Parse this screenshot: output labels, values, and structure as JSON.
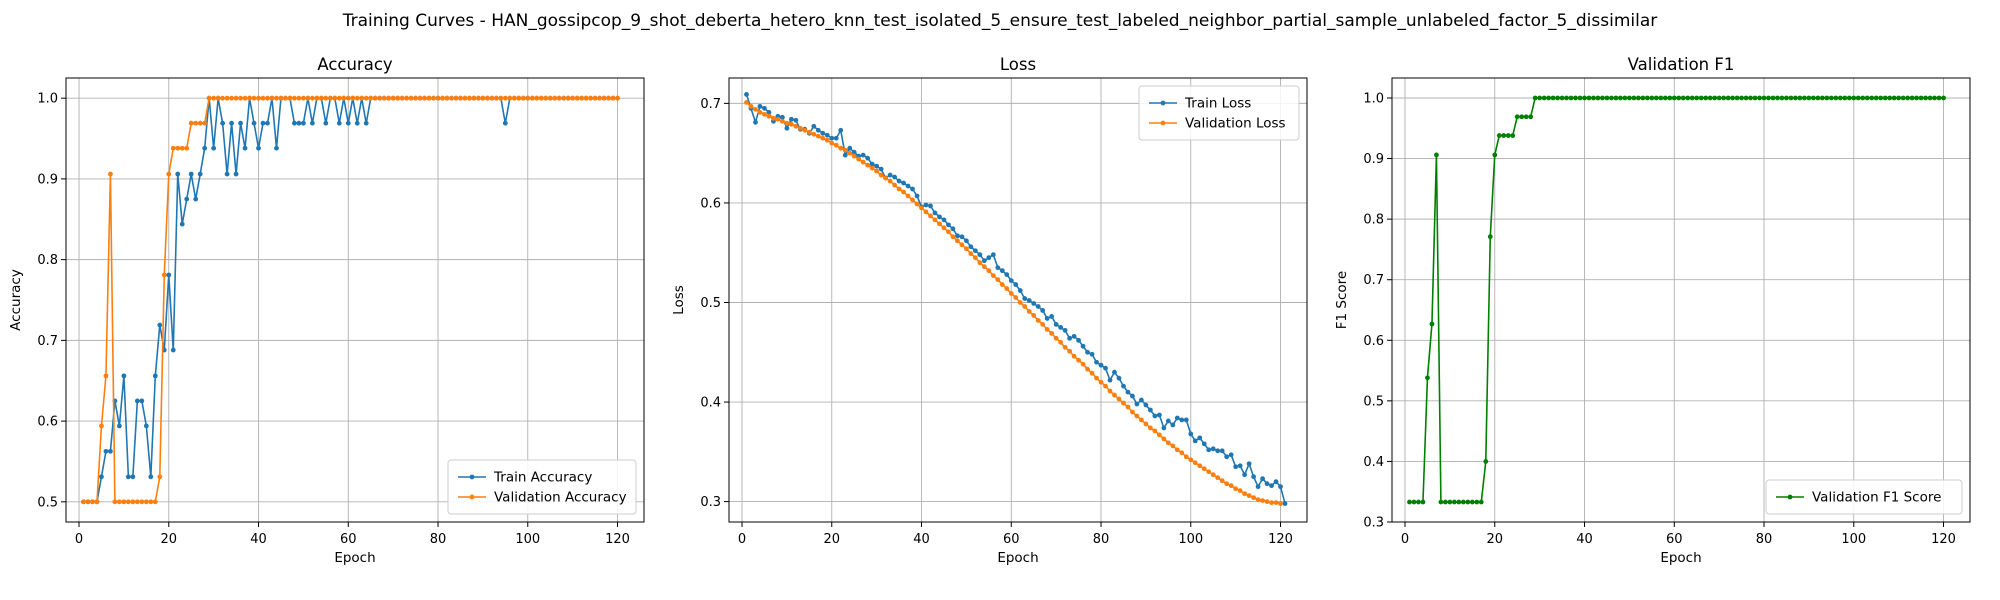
{
  "figure": {
    "title": "Training Curves - HAN_gossipcop_9_shot_deberta_hetero_knn_test_isolated_5_ensure_test_labeled_neighbor_partial_sample_unlabeled_factor_5_dissimilar"
  },
  "colors": {
    "train": "#1f77b4",
    "validation": "#ff7f0e",
    "f1": "#008000",
    "grid": "#b0b0b0"
  },
  "chart_data": [
    {
      "type": "line",
      "title": "Accuracy",
      "xlabel": "Epoch",
      "ylabel": "Accuracy",
      "xlim": [
        -2.9,
        125.9
      ],
      "ylim": [
        0.475,
        1.025
      ],
      "xticks": [
        0,
        20,
        40,
        60,
        80,
        100,
        120
      ],
      "yticks": [
        0.5,
        0.6,
        0.7,
        0.8,
        0.9,
        1.0
      ],
      "ytick_labels": [
        "0.5",
        "0.6",
        "0.7",
        "0.8",
        "0.9",
        "1.0"
      ],
      "grid": true,
      "legend": "lower-right",
      "series": [
        {
          "name": "Train Accuracy",
          "color": "#1f77b4",
          "x_start": 1,
          "values": [
            0.5,
            0.5,
            0.5,
            0.5,
            0.531,
            0.5625,
            0.5625,
            0.625,
            0.594,
            0.656,
            0.531,
            0.531,
            0.625,
            0.625,
            0.594,
            0.531,
            0.656,
            0.719,
            0.688,
            0.781,
            0.688,
            0.906,
            0.844,
            0.875,
            0.906,
            0.875,
            0.906,
            0.938,
            1.0,
            0.938,
            1.0,
            0.969,
            0.906,
            0.969,
            0.906,
            0.969,
            0.938,
            1.0,
            0.969,
            0.938,
            0.969,
            0.969,
            1.0,
            0.938,
            1.0,
            1.0,
            1.0,
            0.969,
            0.969,
            0.969,
            1.0,
            0.969,
            1.0,
            1.0,
            0.969,
            1.0,
            1.0,
            0.969,
            1.0,
            0.969,
            1.0,
            0.969,
            1.0,
            0.969,
            1.0,
            1.0,
            1.0,
            1.0,
            1.0,
            1.0,
            1.0,
            1.0,
            1.0,
            1.0,
            1.0,
            1.0,
            1.0,
            1.0,
            1.0,
            1.0,
            1.0,
            1.0,
            1.0,
            1.0,
            1.0,
            1.0,
            1.0,
            1.0,
            1.0,
            1.0,
            1.0,
            1.0,
            1.0,
            1.0,
            0.969,
            1.0,
            1.0,
            1.0,
            1.0,
            1.0,
            1.0,
            1.0,
            1.0,
            1.0,
            1.0,
            1.0,
            1.0,
            1.0,
            1.0,
            1.0,
            1.0,
            1.0,
            1.0,
            1.0,
            1.0,
            1.0,
            1.0,
            1.0,
            1.0,
            1.0
          ]
        },
        {
          "name": "Validation Accuracy",
          "color": "#ff7f0e",
          "x_start": 1,
          "values": [
            0.5,
            0.5,
            0.5,
            0.5,
            0.594,
            0.656,
            0.906,
            0.5,
            0.5,
            0.5,
            0.5,
            0.5,
            0.5,
            0.5,
            0.5,
            0.5,
            0.5,
            0.531,
            0.781,
            0.906,
            0.938,
            0.938,
            0.938,
            0.938,
            0.969,
            0.969,
            0.969,
            0.969,
            1.0,
            1.0,
            1.0,
            1.0,
            1.0,
            1.0,
            1.0,
            1.0,
            1.0,
            1.0,
            1.0,
            1.0,
            1.0,
            1.0,
            1.0,
            1.0,
            1.0,
            1.0,
            1.0,
            1.0,
            1.0,
            1.0,
            1.0,
            1.0,
            1.0,
            1.0,
            1.0,
            1.0,
            1.0,
            1.0,
            1.0,
            1.0,
            1.0,
            1.0,
            1.0,
            1.0,
            1.0,
            1.0,
            1.0,
            1.0,
            1.0,
            1.0,
            1.0,
            1.0,
            1.0,
            1.0,
            1.0,
            1.0,
            1.0,
            1.0,
            1.0,
            1.0,
            1.0,
            1.0,
            1.0,
            1.0,
            1.0,
            1.0,
            1.0,
            1.0,
            1.0,
            1.0,
            1.0,
            1.0,
            1.0,
            1.0,
            1.0,
            1.0,
            1.0,
            1.0,
            1.0,
            1.0,
            1.0,
            1.0,
            1.0,
            1.0,
            1.0,
            1.0,
            1.0,
            1.0,
            1.0,
            1.0,
            1.0,
            1.0,
            1.0,
            1.0,
            1.0,
            1.0,
            1.0,
            1.0,
            1.0,
            1.0
          ]
        }
      ]
    },
    {
      "type": "line",
      "title": "Loss",
      "xlabel": "Epoch",
      "ylabel": "Loss",
      "xlim": [
        -2.9,
        125.9
      ],
      "ylim": [
        0.2795,
        0.7255
      ],
      "xticks": [
        0,
        20,
        40,
        60,
        80,
        100,
        120
      ],
      "yticks": [
        0.3,
        0.4,
        0.5,
        0.6,
        0.7
      ],
      "ytick_labels": [
        "0.3",
        "0.4",
        "0.5",
        "0.6",
        "0.7"
      ],
      "grid": true,
      "legend": "upper-right",
      "series": [
        {
          "name": "Train Loss",
          "color": "#1f77b4",
          "x_start": 1,
          "values": [
            0.709,
            0.695,
            0.681,
            0.697,
            0.695,
            0.691,
            0.682,
            0.687,
            0.686,
            0.675,
            0.684,
            0.683,
            0.674,
            0.674,
            0.67,
            0.677,
            0.673,
            0.67,
            0.668,
            0.665,
            0.665,
            0.673,
            0.648,
            0.655,
            0.651,
            0.647,
            0.648,
            0.645,
            0.639,
            0.637,
            0.634,
            0.625,
            0.628,
            0.626,
            0.622,
            0.62,
            0.617,
            0.614,
            0.607,
            0.596,
            0.598,
            0.597,
            0.59,
            0.586,
            0.583,
            0.578,
            0.574,
            0.567,
            0.566,
            0.562,
            0.556,
            0.552,
            0.548,
            0.542,
            0.545,
            0.548,
            0.535,
            0.532,
            0.528,
            0.522,
            0.518,
            0.512,
            0.504,
            0.502,
            0.499,
            0.496,
            0.492,
            0.484,
            0.486,
            0.478,
            0.475,
            0.472,
            0.464,
            0.466,
            0.462,
            0.456,
            0.45,
            0.448,
            0.44,
            0.437,
            0.434,
            0.422,
            0.43,
            0.424,
            0.416,
            0.41,
            0.406,
            0.398,
            0.402,
            0.397,
            0.392,
            0.386,
            0.387,
            0.374,
            0.381,
            0.377,
            0.384,
            0.382,
            0.382,
            0.368,
            0.361,
            0.364,
            0.358,
            0.352,
            0.353,
            0.351,
            0.351,
            0.345,
            0.347,
            0.335,
            0.336,
            0.327,
            0.338,
            0.325,
            0.315,
            0.323,
            0.318,
            0.316,
            0.32,
            0.315,
            0.298
          ]
        },
        {
          "name": "Validation Loss",
          "color": "#ff7f0e",
          "x_start": 1,
          "values": [
            0.701,
            0.697,
            0.694,
            0.691,
            0.689,
            0.687,
            0.685,
            0.684,
            0.682,
            0.68,
            0.679,
            0.677,
            0.675,
            0.673,
            0.671,
            0.669,
            0.667,
            0.665,
            0.663,
            0.66,
            0.658,
            0.655,
            0.653,
            0.65,
            0.647,
            0.644,
            0.641,
            0.638,
            0.635,
            0.632,
            0.628,
            0.625,
            0.622,
            0.618,
            0.614,
            0.611,
            0.607,
            0.603,
            0.599,
            0.595,
            0.591,
            0.587,
            0.583,
            0.579,
            0.575,
            0.571,
            0.566,
            0.562,
            0.558,
            0.554,
            0.549,
            0.545,
            0.54,
            0.536,
            0.532,
            0.527,
            0.523,
            0.518,
            0.514,
            0.509,
            0.505,
            0.5,
            0.496,
            0.491,
            0.487,
            0.482,
            0.478,
            0.473,
            0.469,
            0.464,
            0.46,
            0.455,
            0.451,
            0.446,
            0.442,
            0.438,
            0.433,
            0.429,
            0.424,
            0.42,
            0.416,
            0.411,
            0.407,
            0.403,
            0.399,
            0.395,
            0.39,
            0.386,
            0.382,
            0.378,
            0.374,
            0.371,
            0.367,
            0.363,
            0.359,
            0.356,
            0.352,
            0.349,
            0.345,
            0.342,
            0.339,
            0.336,
            0.333,
            0.33,
            0.327,
            0.324,
            0.321,
            0.318,
            0.316,
            0.313,
            0.311,
            0.308,
            0.306,
            0.304,
            0.302,
            0.301,
            0.3,
            0.299,
            0.299,
            0.298
          ]
        }
      ]
    },
    {
      "type": "line",
      "title": "Validation F1",
      "xlabel": "Epoch",
      "ylabel": "F1 Score",
      "xlim": [
        -2.9,
        125.9
      ],
      "ylim": [
        0.3,
        1.033
      ],
      "xticks": [
        0,
        20,
        40,
        60,
        80,
        100,
        120
      ],
      "yticks": [
        0.3,
        0.4,
        0.5,
        0.6,
        0.7,
        0.8,
        0.9,
        1.0
      ],
      "ytick_labels": [
        "0.3",
        "0.4",
        "0.5",
        "0.6",
        "0.7",
        "0.8",
        "0.9",
        "1.0"
      ],
      "grid": true,
      "legend": "lower-right",
      "series": [
        {
          "name": "Validation F1 Score",
          "color": "#008000",
          "x_start": 1,
          "values": [
            0.333,
            0.333,
            0.333,
            0.333,
            0.538,
            0.627,
            0.906,
            0.333,
            0.333,
            0.333,
            0.333,
            0.333,
            0.333,
            0.333,
            0.333,
            0.333,
            0.333,
            0.4,
            0.771,
            0.906,
            0.938,
            0.938,
            0.938,
            0.938,
            0.969,
            0.969,
            0.969,
            0.969,
            1.0,
            1.0,
            1.0,
            1.0,
            1.0,
            1.0,
            1.0,
            1.0,
            1.0,
            1.0,
            1.0,
            1.0,
            1.0,
            1.0,
            1.0,
            1.0,
            1.0,
            1.0,
            1.0,
            1.0,
            1.0,
            1.0,
            1.0,
            1.0,
            1.0,
            1.0,
            1.0,
            1.0,
            1.0,
            1.0,
            1.0,
            1.0,
            1.0,
            1.0,
            1.0,
            1.0,
            1.0,
            1.0,
            1.0,
            1.0,
            1.0,
            1.0,
            1.0,
            1.0,
            1.0,
            1.0,
            1.0,
            1.0,
            1.0,
            1.0,
            1.0,
            1.0,
            1.0,
            1.0,
            1.0,
            1.0,
            1.0,
            1.0,
            1.0,
            1.0,
            1.0,
            1.0,
            1.0,
            1.0,
            1.0,
            1.0,
            1.0,
            1.0,
            1.0,
            1.0,
            1.0,
            1.0,
            1.0,
            1.0,
            1.0,
            1.0,
            1.0,
            1.0,
            1.0,
            1.0,
            1.0,
            1.0,
            1.0,
            1.0,
            1.0,
            1.0,
            1.0,
            1.0,
            1.0,
            1.0,
            1.0,
            1.0
          ]
        }
      ]
    }
  ]
}
